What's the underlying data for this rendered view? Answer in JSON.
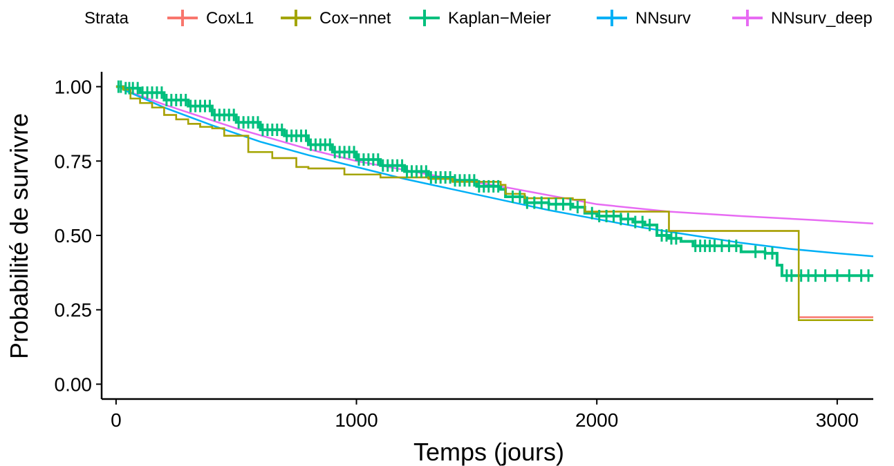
{
  "chart_data": {
    "type": "line",
    "title": "",
    "xlabel": "Temps (jours)",
    "ylabel": "Probabilité de survivre",
    "xlim": [
      -60,
      3150
    ],
    "ylim": [
      -0.05,
      1.05
    ],
    "xticks": [
      0,
      1000,
      2000,
      3000
    ],
    "xtick_labels": [
      "0",
      "1000",
      "2000",
      "3000"
    ],
    "yticks": [
      0,
      0.25,
      0.5,
      0.75,
      1.0
    ],
    "ytick_labels": [
      "0.00",
      "0.25",
      "0.50",
      "0.75",
      "1.00"
    ],
    "grid": false,
    "legend": {
      "title": "Strata",
      "position": "top",
      "entries": [
        "CoxL1",
        "Cox−nnet",
        "Kaplan−Meier",
        "NNsurv",
        "NNsurv_deep"
      ]
    },
    "series": [
      {
        "name": "NNsurv_deep",
        "color": "#E76BF3",
        "shape": "line",
        "x": [
          30,
          200,
          500,
          800,
          1000,
          1200,
          1400,
          1600,
          1800,
          2000,
          2300,
          2600,
          2900,
          3150
        ],
        "y": [
          0.99,
          0.94,
          0.86,
          0.79,
          0.75,
          0.72,
          0.69,
          0.665,
          0.635,
          0.605,
          0.58,
          0.565,
          0.552,
          0.54
        ]
      },
      {
        "name": "NNsurv",
        "color": "#00B0F6",
        "shape": "line",
        "x": [
          30,
          200,
          400,
          600,
          800,
          1000,
          1200,
          1400,
          1600,
          1800,
          2000,
          2200,
          2400,
          2600,
          2800,
          3000,
          3150
        ],
        "y": [
          0.99,
          0.93,
          0.87,
          0.815,
          0.77,
          0.73,
          0.69,
          0.655,
          0.62,
          0.585,
          0.555,
          0.525,
          0.5,
          0.475,
          0.455,
          0.44,
          0.43
        ]
      },
      {
        "name": "Kaplan−Meier",
        "color": "#00BF7D",
        "shape": "step",
        "x": [
          0,
          30,
          100,
          200,
          300,
          400,
          500,
          600,
          700,
          800,
          900,
          1000,
          1100,
          1200,
          1300,
          1400,
          1500,
          1600,
          1620,
          1700,
          1800,
          1900,
          1950,
          2000,
          2100,
          2150,
          2200,
          2250,
          2300,
          2350,
          2400,
          2500,
          2600,
          2700,
          2750,
          2770,
          3150
        ],
        "y": [
          1.0,
          0.995,
          0.98,
          0.955,
          0.935,
          0.905,
          0.88,
          0.855,
          0.835,
          0.805,
          0.78,
          0.755,
          0.735,
          0.715,
          0.695,
          0.685,
          0.665,
          0.655,
          0.63,
          0.61,
          0.605,
          0.595,
          0.575,
          0.565,
          0.555,
          0.545,
          0.535,
          0.5,
          0.49,
          0.48,
          0.465,
          0.465,
          0.445,
          0.44,
          0.4,
          0.365,
          0.365
        ]
      },
      {
        "name": "CoxL1",
        "color": "#F8766D",
        "shape": "step",
        "x": [
          0,
          30,
          60,
          100,
          150,
          200,
          250,
          300,
          350,
          400,
          450,
          550,
          650,
          750,
          800,
          950,
          1100,
          1300,
          1400,
          1600,
          1620,
          1700,
          1900,
          1950,
          2280,
          2300,
          2820,
          2840,
          3150
        ],
        "y": [
          1.0,
          0.99,
          0.96,
          0.945,
          0.93,
          0.905,
          0.89,
          0.875,
          0.865,
          0.86,
          0.835,
          0.78,
          0.76,
          0.73,
          0.725,
          0.705,
          0.695,
          0.69,
          0.68,
          0.67,
          0.64,
          0.625,
          0.62,
          0.58,
          0.58,
          0.515,
          0.515,
          0.225,
          0.225
        ]
      },
      {
        "name": "Cox−nnet",
        "color": "#A3A500",
        "shape": "step",
        "x": [
          0,
          30,
          60,
          100,
          150,
          200,
          250,
          300,
          350,
          400,
          450,
          550,
          650,
          750,
          800,
          950,
          1100,
          1300,
          1400,
          1600,
          1620,
          1700,
          1900,
          1950,
          2280,
          2300,
          2820,
          2840,
          3150
        ],
        "y": [
          1.0,
          0.99,
          0.96,
          0.945,
          0.93,
          0.905,
          0.89,
          0.875,
          0.865,
          0.86,
          0.835,
          0.78,
          0.76,
          0.73,
          0.725,
          0.705,
          0.695,
          0.69,
          0.68,
          0.67,
          0.64,
          0.625,
          0.62,
          0.58,
          0.58,
          0.515,
          0.515,
          0.215,
          0.215
        ]
      }
    ],
    "censor_marks": {
      "series": "Kaplan−Meier",
      "times": [
        10,
        20,
        40,
        55,
        70,
        90,
        110,
        130,
        150,
        170,
        190,
        210,
        230,
        250,
        270,
        290,
        310,
        330,
        350,
        370,
        390,
        410,
        430,
        450,
        470,
        490,
        510,
        530,
        550,
        570,
        590,
        610,
        630,
        650,
        670,
        690,
        710,
        730,
        750,
        770,
        790,
        810,
        830,
        850,
        870,
        890,
        910,
        930,
        950,
        970,
        990,
        1010,
        1030,
        1050,
        1070,
        1090,
        1110,
        1130,
        1150,
        1170,
        1190,
        1210,
        1230,
        1250,
        1270,
        1290,
        1310,
        1330,
        1350,
        1370,
        1390,
        1410,
        1430,
        1450,
        1470,
        1490,
        1510,
        1530,
        1550,
        1570,
        1590,
        1650,
        1680,
        1710,
        1740,
        1770,
        1800,
        1830,
        1860,
        1890,
        1920,
        1980,
        2010,
        2040,
        2070,
        2100,
        2130,
        2160,
        2190,
        2220,
        2270,
        2290,
        2310,
        2330,
        2410,
        2430,
        2450,
        2470,
        2490,
        2520,
        2550,
        2580,
        2660,
        2700,
        2730,
        2790,
        2810,
        2850,
        2880,
        2910,
        2950,
        3000,
        3050,
        3100,
        3130
      ]
    }
  }
}
